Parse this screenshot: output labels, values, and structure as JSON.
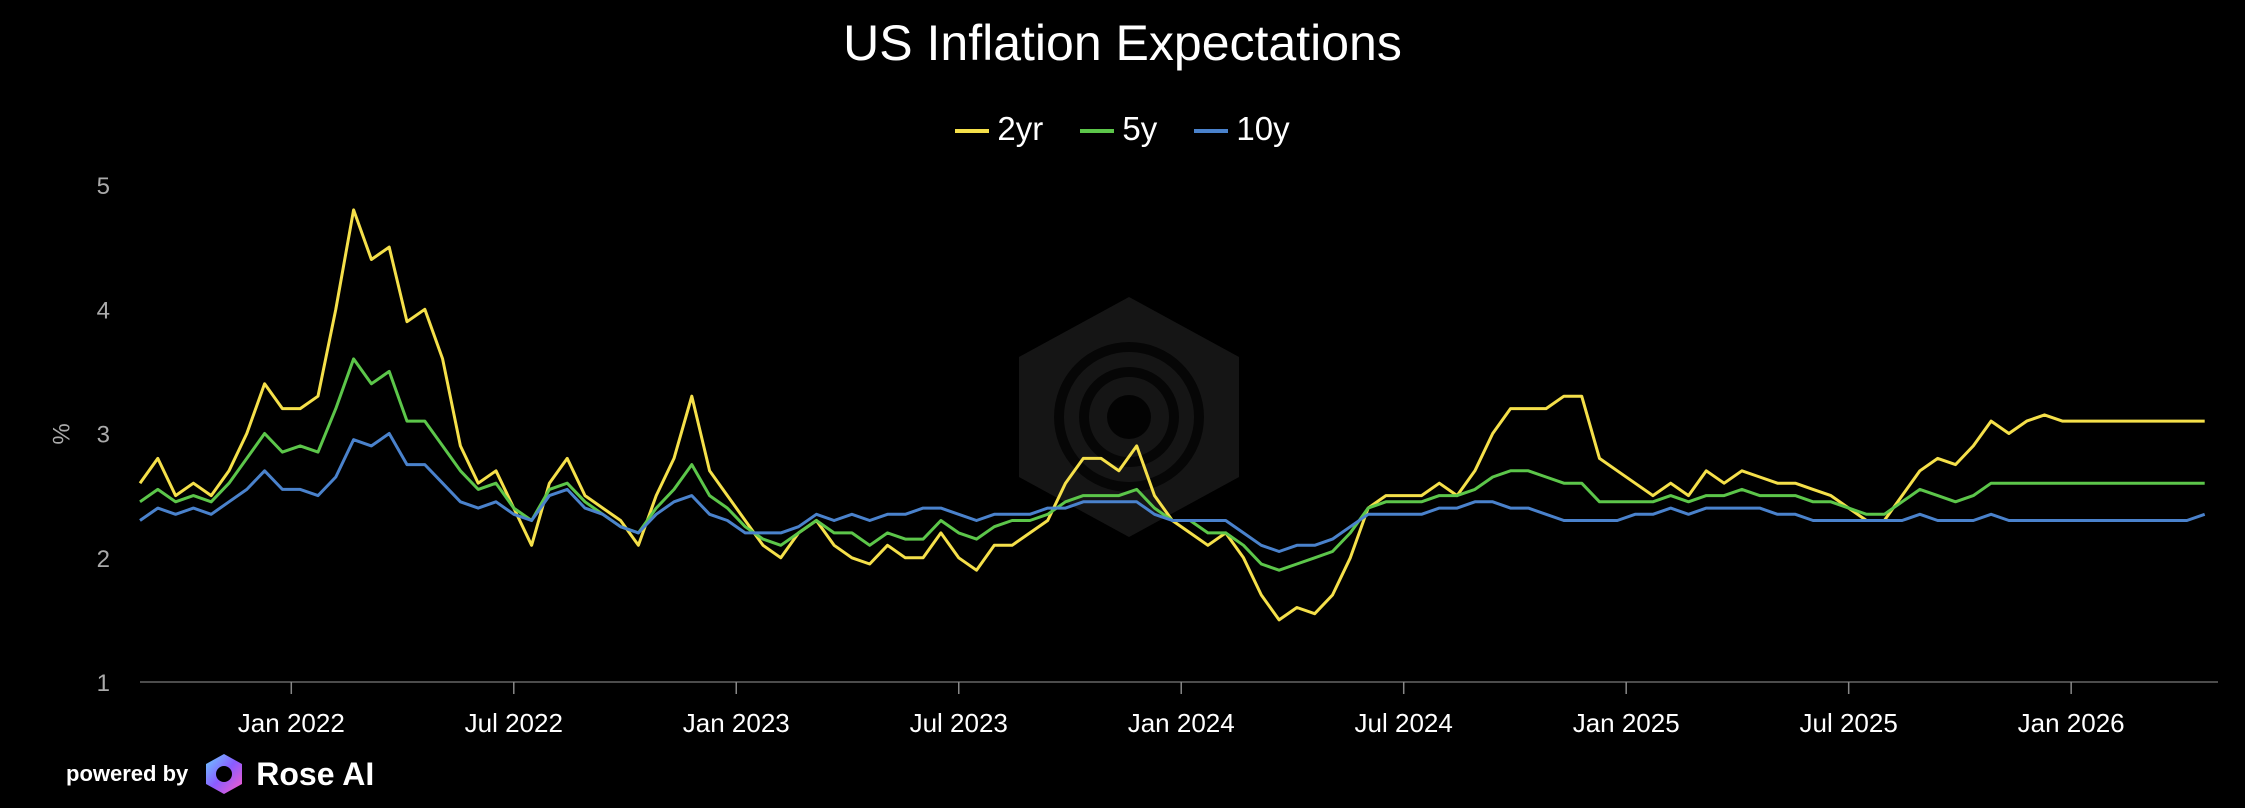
{
  "chart_data": {
    "type": "line",
    "title": "US Inflation Expectations",
    "xlabel": "",
    "ylabel": "%",
    "ylim": [
      1,
      5
    ],
    "yticks": [
      1,
      2,
      3,
      4,
      5
    ],
    "xlim": [
      2021.66,
      2026.33
    ],
    "xticks": [
      {
        "label": "Jan 2022",
        "x": 2022.0
      },
      {
        "label": "Jul 2022",
        "x": 2022.5
      },
      {
        "label": "Jan 2023",
        "x": 2023.0
      },
      {
        "label": "Jul 2023",
        "x": 2023.5
      },
      {
        "label": "Jan 2024",
        "x": 2024.0
      },
      {
        "label": "Jul 2024",
        "x": 2024.5
      },
      {
        "label": "Jan 2025",
        "x": 2025.0
      },
      {
        "label": "Jul 2025",
        "x": 2025.5
      },
      {
        "label": "Jan 2026",
        "x": 2026.0
      }
    ],
    "legend_position": "top-center",
    "series": [
      {
        "name": "2yr",
        "color": "#f5e04a",
        "x": [
          2021.66,
          2021.7,
          2021.74,
          2021.78,
          2021.82,
          2021.86,
          2021.9,
          2021.94,
          2021.98,
          2022.02,
          2022.06,
          2022.1,
          2022.14,
          2022.18,
          2022.22,
          2022.26,
          2022.3,
          2022.34,
          2022.38,
          2022.42,
          2022.46,
          2022.5,
          2022.54,
          2022.58,
          2022.62,
          2022.66,
          2022.7,
          2022.74,
          2022.78,
          2022.82,
          2022.86,
          2022.9,
          2022.94,
          2022.98,
          2023.02,
          2023.06,
          2023.1,
          2023.14,
          2023.18,
          2023.22,
          2023.26,
          2023.3,
          2023.34,
          2023.38,
          2023.42,
          2023.46,
          2023.5,
          2023.54,
          2023.58,
          2023.62,
          2023.66,
          2023.7,
          2023.74,
          2023.78,
          2023.82,
          2023.86,
          2023.9,
          2023.94,
          2023.98,
          2024.02,
          2024.06,
          2024.1,
          2024.14,
          2024.18,
          2024.22,
          2024.26,
          2024.3,
          2024.34,
          2024.38,
          2024.42,
          2024.46,
          2024.5,
          2024.54,
          2024.58,
          2024.62,
          2024.66,
          2024.7,
          2024.74,
          2024.78,
          2024.82,
          2024.86,
          2024.9,
          2024.94,
          2024.98,
          2025.02,
          2025.06,
          2025.1,
          2025.14,
          2025.18,
          2025.22,
          2025.26,
          2025.3,
          2025.34,
          2025.38,
          2025.42,
          2025.46,
          2025.5,
          2025.54,
          2025.58,
          2025.62,
          2025.66,
          2025.7,
          2025.74,
          2025.78,
          2025.82,
          2025.86,
          2025.9,
          2025.94,
          2025.98,
          2026.02,
          2026.06,
          2026.1,
          2026.14,
          2026.18,
          2026.22,
          2026.26,
          2026.3
        ],
        "values": [
          2.6,
          2.8,
          2.5,
          2.6,
          2.5,
          2.7,
          3.0,
          3.4,
          3.2,
          3.2,
          3.3,
          4.0,
          4.8,
          4.4,
          4.5,
          3.9,
          4.0,
          3.6,
          2.9,
          2.6,
          2.7,
          2.4,
          2.1,
          2.6,
          2.8,
          2.5,
          2.4,
          2.3,
          2.1,
          2.5,
          2.8,
          3.3,
          2.7,
          2.5,
          2.3,
          2.1,
          2.0,
          2.2,
          2.3,
          2.1,
          2.0,
          1.95,
          2.1,
          2.0,
          2.0,
          2.2,
          2.0,
          1.9,
          2.1,
          2.1,
          2.2,
          2.3,
          2.6,
          2.8,
          2.8,
          2.7,
          2.9,
          2.5,
          2.3,
          2.2,
          2.1,
          2.2,
          2.0,
          1.7,
          1.5,
          1.6,
          1.55,
          1.7,
          2.0,
          2.4,
          2.5,
          2.5,
          2.5,
          2.6,
          2.5,
          2.7,
          3.0,
          3.2,
          3.2,
          3.2,
          3.3,
          3.3,
          2.8,
          2.7,
          2.6,
          2.5,
          2.6,
          2.5,
          2.7,
          2.6,
          2.7,
          2.65,
          2.6,
          2.6,
          2.55,
          2.5,
          2.4,
          2.3,
          2.3,
          2.5,
          2.7,
          2.8,
          2.75,
          2.9,
          3.1,
          3.0,
          3.1,
          3.15,
          3.1,
          3.1,
          3.1,
          3.1,
          3.1,
          3.1,
          3.1,
          3.1,
          3.1
        ]
      },
      {
        "name": "5y",
        "color": "#5cc64a",
        "x": [
          2021.66,
          2021.7,
          2021.74,
          2021.78,
          2021.82,
          2021.86,
          2021.9,
          2021.94,
          2021.98,
          2022.02,
          2022.06,
          2022.1,
          2022.14,
          2022.18,
          2022.22,
          2022.26,
          2022.3,
          2022.34,
          2022.38,
          2022.42,
          2022.46,
          2022.5,
          2022.54,
          2022.58,
          2022.62,
          2022.66,
          2022.7,
          2022.74,
          2022.78,
          2022.82,
          2022.86,
          2022.9,
          2022.94,
          2022.98,
          2023.02,
          2023.06,
          2023.1,
          2023.14,
          2023.18,
          2023.22,
          2023.26,
          2023.3,
          2023.34,
          2023.38,
          2023.42,
          2023.46,
          2023.5,
          2023.54,
          2023.58,
          2023.62,
          2023.66,
          2023.7,
          2023.74,
          2023.78,
          2023.82,
          2023.86,
          2023.9,
          2023.94,
          2023.98,
          2024.02,
          2024.06,
          2024.1,
          2024.14,
          2024.18,
          2024.22,
          2024.26,
          2024.3,
          2024.34,
          2024.38,
          2024.42,
          2024.46,
          2024.5,
          2024.54,
          2024.58,
          2024.62,
          2024.66,
          2024.7,
          2024.74,
          2024.78,
          2024.82,
          2024.86,
          2024.9,
          2024.94,
          2024.98,
          2025.02,
          2025.06,
          2025.1,
          2025.14,
          2025.18,
          2025.22,
          2025.26,
          2025.3,
          2025.34,
          2025.38,
          2025.42,
          2025.46,
          2025.5,
          2025.54,
          2025.58,
          2025.62,
          2025.66,
          2025.7,
          2025.74,
          2025.78,
          2025.82,
          2025.86,
          2025.9,
          2025.94,
          2025.98,
          2026.02,
          2026.06,
          2026.1,
          2026.14,
          2026.18,
          2026.22,
          2026.26,
          2026.3
        ],
        "values": [
          2.45,
          2.55,
          2.45,
          2.5,
          2.45,
          2.6,
          2.8,
          3.0,
          2.85,
          2.9,
          2.85,
          3.2,
          3.6,
          3.4,
          3.5,
          3.1,
          3.1,
          2.9,
          2.7,
          2.55,
          2.6,
          2.4,
          2.3,
          2.55,
          2.6,
          2.45,
          2.35,
          2.25,
          2.2,
          2.4,
          2.55,
          2.75,
          2.5,
          2.4,
          2.25,
          2.15,
          2.1,
          2.2,
          2.3,
          2.2,
          2.2,
          2.1,
          2.2,
          2.15,
          2.15,
          2.3,
          2.2,
          2.15,
          2.25,
          2.3,
          2.3,
          2.35,
          2.45,
          2.5,
          2.5,
          2.5,
          2.55,
          2.4,
          2.3,
          2.3,
          2.2,
          2.2,
          2.1,
          1.95,
          1.9,
          1.95,
          2.0,
          2.05,
          2.2,
          2.4,
          2.45,
          2.45,
          2.45,
          2.5,
          2.5,
          2.55,
          2.65,
          2.7,
          2.7,
          2.65,
          2.6,
          2.6,
          2.45,
          2.45,
          2.45,
          2.45,
          2.5,
          2.45,
          2.5,
          2.5,
          2.55,
          2.5,
          2.5,
          2.5,
          2.45,
          2.45,
          2.4,
          2.35,
          2.35,
          2.45,
          2.55,
          2.5,
          2.45,
          2.5,
          2.6,
          2.6,
          2.6,
          2.6,
          2.6,
          2.6,
          2.6,
          2.6,
          2.6,
          2.6,
          2.6,
          2.6,
          2.6
        ]
      },
      {
        "name": "10y",
        "color": "#4a82cc",
        "x": [
          2021.66,
          2021.7,
          2021.74,
          2021.78,
          2021.82,
          2021.86,
          2021.9,
          2021.94,
          2021.98,
          2022.02,
          2022.06,
          2022.1,
          2022.14,
          2022.18,
          2022.22,
          2022.26,
          2022.3,
          2022.34,
          2022.38,
          2022.42,
          2022.46,
          2022.5,
          2022.54,
          2022.58,
          2022.62,
          2022.66,
          2022.7,
          2022.74,
          2022.78,
          2022.82,
          2022.86,
          2022.9,
          2022.94,
          2022.98,
          2023.02,
          2023.06,
          2023.1,
          2023.14,
          2023.18,
          2023.22,
          2023.26,
          2023.3,
          2023.34,
          2023.38,
          2023.42,
          2023.46,
          2023.5,
          2023.54,
          2023.58,
          2023.62,
          2023.66,
          2023.7,
          2023.74,
          2023.78,
          2023.82,
          2023.86,
          2023.9,
          2023.94,
          2023.98,
          2024.02,
          2024.06,
          2024.1,
          2024.14,
          2024.18,
          2024.22,
          2024.26,
          2024.3,
          2024.34,
          2024.38,
          2024.42,
          2024.46,
          2024.5,
          2024.54,
          2024.58,
          2024.62,
          2024.66,
          2024.7,
          2024.74,
          2024.78,
          2024.82,
          2024.86,
          2024.9,
          2024.94,
          2024.98,
          2025.02,
          2025.06,
          2025.1,
          2025.14,
          2025.18,
          2025.22,
          2025.26,
          2025.3,
          2025.34,
          2025.38,
          2025.42,
          2025.46,
          2025.5,
          2025.54,
          2025.58,
          2025.62,
          2025.66,
          2025.7,
          2025.74,
          2025.78,
          2025.82,
          2025.86,
          2025.9,
          2025.94,
          2025.98,
          2026.02,
          2026.06,
          2026.1,
          2026.14,
          2026.18,
          2026.22,
          2026.26,
          2026.3
        ],
        "values": [
          2.3,
          2.4,
          2.35,
          2.4,
          2.35,
          2.45,
          2.55,
          2.7,
          2.55,
          2.55,
          2.5,
          2.65,
          2.95,
          2.9,
          3.0,
          2.75,
          2.75,
          2.6,
          2.45,
          2.4,
          2.45,
          2.35,
          2.3,
          2.5,
          2.55,
          2.4,
          2.35,
          2.25,
          2.2,
          2.35,
          2.45,
          2.5,
          2.35,
          2.3,
          2.2,
          2.2,
          2.2,
          2.25,
          2.35,
          2.3,
          2.35,
          2.3,
          2.35,
          2.35,
          2.4,
          2.4,
          2.35,
          2.3,
          2.35,
          2.35,
          2.35,
          2.4,
          2.4,
          2.45,
          2.45,
          2.45,
          2.45,
          2.35,
          2.3,
          2.3,
          2.3,
          2.3,
          2.2,
          2.1,
          2.05,
          2.1,
          2.1,
          2.15,
          2.25,
          2.35,
          2.35,
          2.35,
          2.35,
          2.4,
          2.4,
          2.45,
          2.45,
          2.4,
          2.4,
          2.35,
          2.3,
          2.3,
          2.3,
          2.3,
          2.35,
          2.35,
          2.4,
          2.35,
          2.4,
          2.4,
          2.4,
          2.4,
          2.35,
          2.35,
          2.3,
          2.3,
          2.3,
          2.3,
          2.3,
          2.3,
          2.35,
          2.3,
          2.3,
          2.3,
          2.35,
          2.3,
          2.3,
          2.3,
          2.3,
          2.3,
          2.3,
          2.3,
          2.3,
          2.3,
          2.3,
          2.3,
          2.35
        ]
      }
    ]
  },
  "branding": {
    "powered_by": "powered by",
    "name": "Rose AI"
  }
}
